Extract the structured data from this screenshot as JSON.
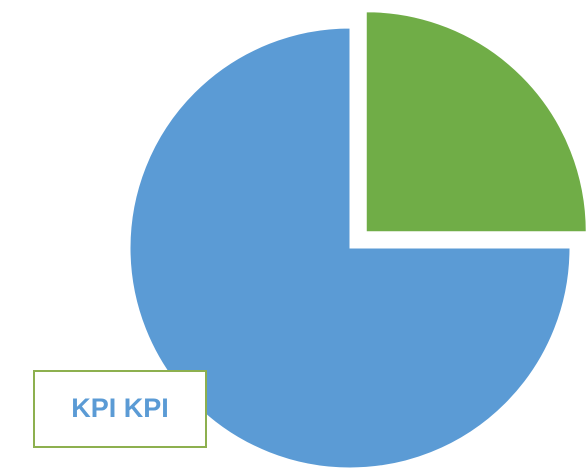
{
  "chart_data": {
    "type": "pie",
    "values": [
      25,
      75
    ],
    "colors": [
      "#70ad47",
      "#5b9bd5"
    ],
    "annotation": "KPI KPI"
  }
}
